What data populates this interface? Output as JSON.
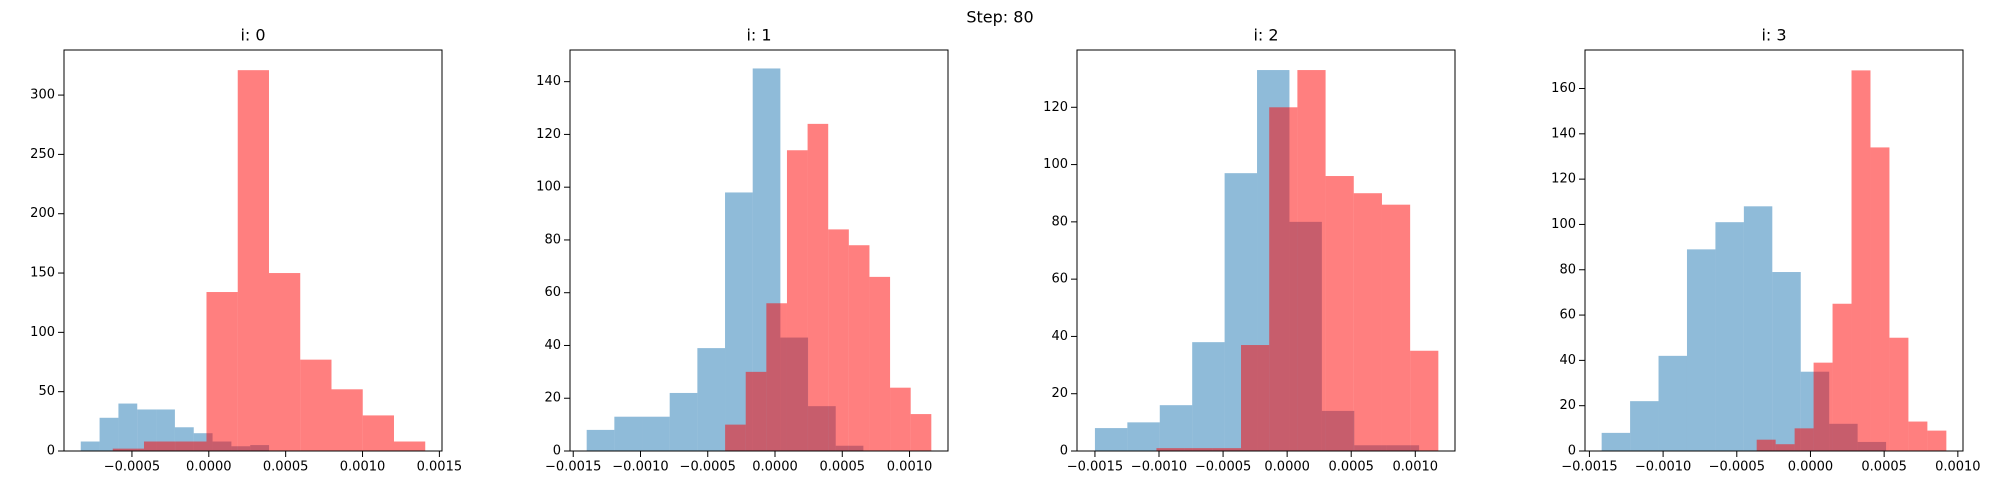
{
  "title": "Step: 80",
  "chart_data": [
    {
      "type": "histogram",
      "title": "i: 0",
      "xlim": [
        -0.000942,
        0.001517
      ],
      "ylim": [
        0,
        338
      ],
      "xticks": [
        {
          "value": -0.0005,
          "label": "−0.0005"
        },
        {
          "value": 0,
          "label": "0.0000"
        },
        {
          "value": 0.0005,
          "label": "0.0005"
        },
        {
          "value": 0.001,
          "label": "0.0010"
        },
        {
          "value": 0.0015,
          "label": "0.0015"
        }
      ],
      "yticks": [
        0,
        50,
        100,
        150,
        200,
        250,
        300
      ],
      "series": [
        {
          "color": "#1f77b4",
          "alpha": 0.5,
          "bins": [
            -0.000833,
            -0.0007105,
            -0.000588,
            -0.0004655,
            -0.000343,
            -0.0002205,
            -9.8e-05,
            2.45e-05,
            0.000147,
            0.0002695,
            0.000392
          ],
          "values": [
            8,
            28,
            40,
            35,
            35,
            20,
            15,
            8,
            4,
            5
          ]
        },
        {
          "color": "#ff0000",
          "alpha": 0.5,
          "bins": [
            -0.000625,
            -0.0004217,
            -0.0002184,
            -1.51e-05,
            0.0001882,
            0.0003915,
            0.0005948,
            0.0007981,
            0.0010014,
            0.0012047,
            0.001408
          ],
          "values": [
            2,
            8,
            8,
            134,
            321,
            150,
            77,
            52,
            30,
            8
          ]
        }
      ]
    },
    {
      "type": "histogram",
      "title": "i: 1",
      "xlim": [
        -0.001524,
        0.001286
      ],
      "ylim": [
        0,
        152
      ],
      "xticks": [
        {
          "value": -0.0015,
          "label": "−0.0015"
        },
        {
          "value": -0.001,
          "label": "−0.0010"
        },
        {
          "value": -0.0005,
          "label": "−0.0005"
        },
        {
          "value": 0,
          "label": "0.0000"
        },
        {
          "value": 0.0005,
          "label": "0.0005"
        },
        {
          "value": 0.001,
          "label": "0.0010"
        }
      ],
      "yticks": [
        0,
        20,
        40,
        60,
        80,
        100,
        120,
        140
      ],
      "series": [
        {
          "color": "#1f77b4",
          "alpha": 0.5,
          "bins": [
            -0.0014,
            -0.0011943,
            -0.0009886,
            -0.0007829,
            -0.0005772,
            -0.0003715,
            -0.0001658,
            3.99e-05,
            0.0002456,
            0.0004513,
            0.000657
          ],
          "values": [
            8,
            13,
            13,
            22,
            39,
            98,
            145,
            43,
            17,
            2
          ]
        },
        {
          "color": "#ff0000",
          "alpha": 0.5,
          "bins": [
            -0.000371,
            -0.0002177,
            -6.44e-05,
            8.89e-05,
            0.0002422,
            0.0003955,
            0.0005488,
            0.0007021,
            0.0008554,
            0.0010087,
            0.001162
          ],
          "values": [
            10,
            30,
            56,
            114,
            124,
            84,
            78,
            66,
            24,
            14
          ]
        }
      ]
    },
    {
      "type": "histogram",
      "title": "i: 2",
      "xlim": [
        -0.00164,
        0.00131
      ],
      "ylim": [
        0,
        140
      ],
      "xticks": [
        {
          "value": -0.0015,
          "label": "−0.0015"
        },
        {
          "value": -0.001,
          "label": "−0.0010"
        },
        {
          "value": -0.0005,
          "label": "−0.0005"
        },
        {
          "value": 0,
          "label": "0.0000"
        },
        {
          "value": 0.0005,
          "label": "0.0005"
        },
        {
          "value": 0.001,
          "label": "0.0010"
        }
      ],
      "yticks": [
        0,
        20,
        40,
        60,
        80,
        100,
        120
      ],
      "series": [
        {
          "color": "#1f77b4",
          "alpha": 0.5,
          "bins": [
            -0.0015,
            -0.001247,
            -0.000994,
            -0.000741,
            -0.000488,
            -0.000235,
            1.8e-05,
            0.000271,
            0.000524,
            0.000777,
            0.00103
          ],
          "values": [
            8,
            10,
            16,
            38,
            97,
            133,
            80,
            14,
            2,
            2
          ]
        },
        {
          "color": "#ff0000",
          "alpha": 0.5,
          "bins": [
            -0.00102,
            -0.0008,
            -0.00058,
            -0.00036,
            -0.00014,
            8e-05,
            0.0003,
            0.00052,
            0.00074,
            0.00096,
            0.00118
          ],
          "values": [
            1,
            1,
            1,
            37,
            120,
            133,
            96,
            90,
            86,
            35
          ]
        }
      ]
    },
    {
      "type": "histogram",
      "title": "i: 3",
      "xlim": [
        -0.00153,
        0.001035
      ],
      "ylim": [
        0,
        177
      ],
      "xticks": [
        {
          "value": -0.0015,
          "label": "−0.0015"
        },
        {
          "value": -0.001,
          "label": "−0.0010"
        },
        {
          "value": -0.0005,
          "label": "−0.0005"
        },
        {
          "value": 0,
          "label": "0.0000"
        },
        {
          "value": 0.0005,
          "label": "0.0005"
        },
        {
          "value": 0.001,
          "label": "0.0010"
        }
      ],
      "yticks": [
        0,
        20,
        40,
        60,
        80,
        100,
        120,
        140,
        160
      ],
      "series": [
        {
          "color": "#1f77b4",
          "alpha": 0.5,
          "bins": [
            -0.001417,
            -0.001224,
            -0.001031,
            -0.000838,
            -0.000645,
            -0.000452,
            -0.000259,
            -6.6e-05,
            0.000127,
            0.00032,
            0.000513
          ],
          "values": [
            8,
            22,
            42,
            89,
            101,
            108,
            79,
            35,
            12,
            4
          ]
        },
        {
          "color": "#ff0000",
          "alpha": 0.5,
          "bins": [
            -0.000365,
            -0.0002363,
            -0.0001076,
            2.11e-05,
            0.0001498,
            0.0002785,
            0.0004072,
            0.0005359,
            0.0006646,
            0.0007933,
            0.000922
          ],
          "values": [
            5,
            3,
            10,
            39,
            65,
            168,
            134,
            50,
            13,
            9
          ]
        }
      ]
    }
  ]
}
